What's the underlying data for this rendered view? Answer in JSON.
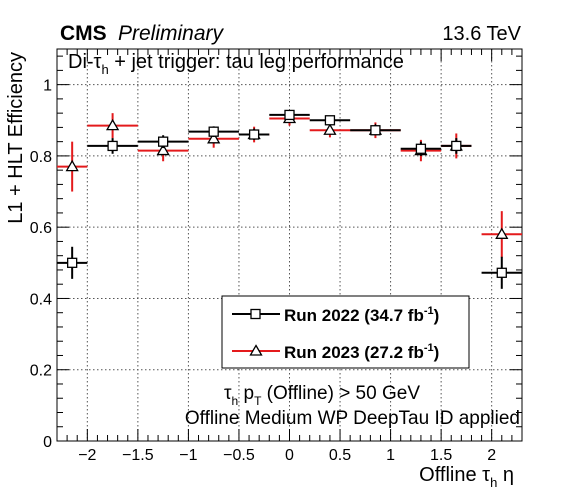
{
  "chart_data": {
    "type": "scatter",
    "header_left": "CMS",
    "header_left_sub": "Preliminary",
    "header_right": "13.6 TeV",
    "title": {
      "pre": "Di-",
      "tau": "τ",
      "sub": "h",
      "post": " + jet trigger: tau leg performance"
    },
    "xlabel": {
      "pre": "Offline ",
      "tau": "τ",
      "sub": "h",
      "post": " η"
    },
    "ylabel": "L1 + HLT Efficiency",
    "xlim": [
      -2.3,
      2.3
    ],
    "ylim": [
      0,
      1.1
    ],
    "grid": true,
    "x_ticks": [
      {
        "v": -2,
        "label": "−2"
      },
      {
        "v": -1.5,
        "label": "−1.5"
      },
      {
        "v": -1,
        "label": "−1"
      },
      {
        "v": -0.5,
        "label": "−0.5"
      },
      {
        "v": 0,
        "label": "0"
      },
      {
        "v": 0.5,
        "label": "0.5"
      },
      {
        "v": 1,
        "label": "1"
      },
      {
        "v": 1.5,
        "label": "1.5"
      },
      {
        "v": 2,
        "label": "2"
      }
    ],
    "y_ticks": [
      {
        "v": 0,
        "label": "0"
      },
      {
        "v": 0.2,
        "label": "0.2"
      },
      {
        "v": 0.4,
        "label": "0.4"
      },
      {
        "v": 0.6,
        "label": "0.6"
      },
      {
        "v": 0.8,
        "label": "0.8"
      },
      {
        "v": 1,
        "label": "1"
      }
    ],
    "series": [
      {
        "name": "Run 2022 (34.7 fb",
        "name_sup": "-1",
        "name_close": ")",
        "color": "#000000",
        "marker": "open-square",
        "points": [
          {
            "x": -2.15,
            "xerr": 0.15,
            "y": 0.5,
            "yerr": 0.045
          },
          {
            "x": -1.75,
            "xerr": 0.25,
            "y": 0.828,
            "yerr": 0.022
          },
          {
            "x": -1.25,
            "xerr": 0.25,
            "y": 0.84,
            "yerr": 0.018
          },
          {
            "x": -0.75,
            "xerr": 0.25,
            "y": 0.868,
            "yerr": 0.015
          },
          {
            "x": -0.35,
            "xerr": 0.15,
            "y": 0.86,
            "yerr": 0.015
          },
          {
            "x": 0,
            "xerr": 0.2,
            "y": 0.915,
            "yerr": 0.012
          },
          {
            "x": 0.4,
            "xerr": 0.2,
            "y": 0.9,
            "yerr": 0.012
          },
          {
            "x": 0.85,
            "xerr": 0.25,
            "y": 0.872,
            "yerr": 0.014
          },
          {
            "x": 1.3,
            "xerr": 0.2,
            "y": 0.82,
            "yerr": 0.02
          },
          {
            "x": 1.65,
            "xerr": 0.15,
            "y": 0.828,
            "yerr": 0.022
          },
          {
            "x": 2.1,
            "xerr": 0.2,
            "y": 0.472,
            "yerr": 0.045
          }
        ]
      },
      {
        "name": "Run 2023 (27.2 fb",
        "name_sup": "-1",
        "name_close": ")",
        "color": "#e41a1c",
        "marker": "open-triangle",
        "points": [
          {
            "x": -2.15,
            "xerr": 0.15,
            "y": 0.77,
            "yerr": 0.07
          },
          {
            "x": -1.75,
            "xerr": 0.25,
            "y": 0.885,
            "yerr": 0.035
          },
          {
            "x": -1.25,
            "xerr": 0.25,
            "y": 0.815,
            "yerr": 0.03
          },
          {
            "x": -0.75,
            "xerr": 0.25,
            "y": 0.848,
            "yerr": 0.025
          },
          {
            "x": -0.35,
            "xerr": 0.15,
            "y": 0.86,
            "yerr": 0.022
          },
          {
            "x": 0,
            "xerr": 0.2,
            "y": 0.905,
            "yerr": 0.02
          },
          {
            "x": 0.4,
            "xerr": 0.2,
            "y": 0.872,
            "yerr": 0.02
          },
          {
            "x": 0.85,
            "xerr": 0.25,
            "y": 0.872,
            "yerr": 0.022
          },
          {
            "x": 1.3,
            "xerr": 0.2,
            "y": 0.815,
            "yerr": 0.03
          },
          {
            "x": 1.65,
            "xerr": 0.15,
            "y": 0.828,
            "yerr": 0.035
          },
          {
            "x": 2.1,
            "xerr": 0.2,
            "y": 0.58,
            "yerr": 0.065
          }
        ]
      }
    ],
    "annotation": {
      "line1_tau": "τ",
      "line1_sub": "h",
      "line1_p": " p",
      "line1_psub": "T",
      "line1_rest": " (Offline) > 50 GeV",
      "line2": "Offline Medium WP DeepTau ID applied"
    }
  }
}
